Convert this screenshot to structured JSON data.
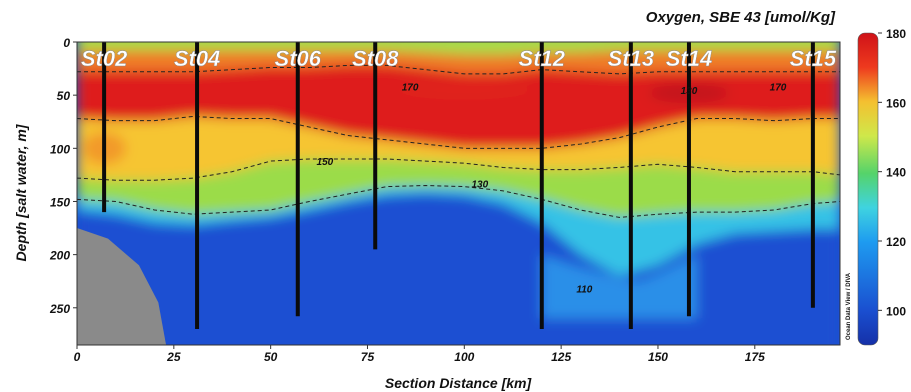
{
  "chart_data": {
    "type": "heatmap",
    "title": "Oxygen, SBE 43 [umol/Kg]",
    "xlabel": "Section Distance [km]",
    "ylabel": "Depth [salt water, m]",
    "xlim": [
      0,
      197
    ],
    "ylim": [
      285,
      0
    ],
    "xticks": [
      0,
      25,
      50,
      75,
      100,
      125,
      150,
      175
    ],
    "yticks": [
      0,
      50,
      100,
      150,
      200,
      250
    ],
    "colorbar": {
      "label": "Oxygen, SBE 43 [umol/Kg]",
      "range": [
        90,
        180
      ],
      "ticks": [
        100,
        120,
        140,
        160,
        180
      ]
    },
    "stations": [
      {
        "name": "St02",
        "x": 7,
        "max_depth": 160
      },
      {
        "name": "St04",
        "x": 31,
        "max_depth": 270
      },
      {
        "name": "St06",
        "x": 57,
        "max_depth": 258
      },
      {
        "name": "St08",
        "x": 77,
        "max_depth": 195
      },
      {
        "name": "St12",
        "x": 120,
        "max_depth": 270
      },
      {
        "name": "St13",
        "x": 143,
        "max_depth": 270
      },
      {
        "name": "St14",
        "x": 158,
        "max_depth": 258
      },
      {
        "name": "St15",
        "x": 190,
        "max_depth": 250
      }
    ],
    "contour_labels": [
      {
        "text": "170",
        "x": 86,
        "y": 42
      },
      {
        "text": "150",
        "x": 64,
        "y": 112
      },
      {
        "text": "130",
        "x": 104,
        "y": 133
      },
      {
        "text": "110",
        "x": 131,
        "y": 232
      },
      {
        "text": "130",
        "x": 158,
        "y": 45
      },
      {
        "text": "170",
        "x": 181,
        "y": 42
      }
    ],
    "layers": {
      "layer_names": [
        "surface",
        "max",
        "upper",
        "mid",
        "shelf",
        "deep",
        "channel"
      ],
      "x": [
        0,
        10,
        20,
        30,
        40,
        50,
        60,
        70,
        80,
        90,
        100,
        110,
        120,
        130,
        140,
        150,
        160,
        170,
        180,
        190,
        197
      ],
      "surface_top": [
        8,
        8,
        8,
        8,
        8,
        8,
        8,
        8,
        8,
        10,
        12,
        12,
        10,
        10,
        8,
        8,
        8,
        8,
        8,
        8,
        8
      ],
      "high_top": [
        28,
        28,
        28,
        28,
        26,
        24,
        24,
        22,
        22,
        26,
        30,
        30,
        26,
        28,
        30,
        28,
        28,
        28,
        28,
        28,
        28
      ],
      "high_bottom": [
        72,
        74,
        74,
        70,
        72,
        72,
        80,
        88,
        92,
        96,
        100,
        100,
        100,
        96,
        90,
        80,
        72,
        72,
        74,
        72,
        72
      ],
      "mid_bottom": [
        128,
        130,
        130,
        128,
        122,
        112,
        110,
        110,
        110,
        112,
        114,
        118,
        120,
        120,
        118,
        115,
        118,
        122,
        122,
        122,
        125
      ],
      "low_bottom": [
        148,
        150,
        158,
        162,
        160,
        158,
        150,
        143,
        136,
        135,
        136,
        140,
        148,
        158,
        165,
        162,
        160,
        160,
        158,
        152,
        150
      ],
      "deep_top": [
        158,
        162,
        170,
        172,
        168,
        165,
        158,
        150,
        144,
        142,
        144,
        152,
        170,
        200,
        220,
        210,
        190,
        180,
        178,
        176,
        176
      ],
      "channel": {
        "x": [
          120,
          130,
          140,
          145,
          150,
          160
        ],
        "top": [
          200,
          212,
          222,
          225,
          218,
          200
        ]
      }
    },
    "seafloor_wedge": {
      "x": [
        0,
        8,
        16,
        21,
        23
      ],
      "depth": [
        175,
        185,
        210,
        245,
        285
      ]
    },
    "watermark": "Ocean Data View / DIVA"
  }
}
